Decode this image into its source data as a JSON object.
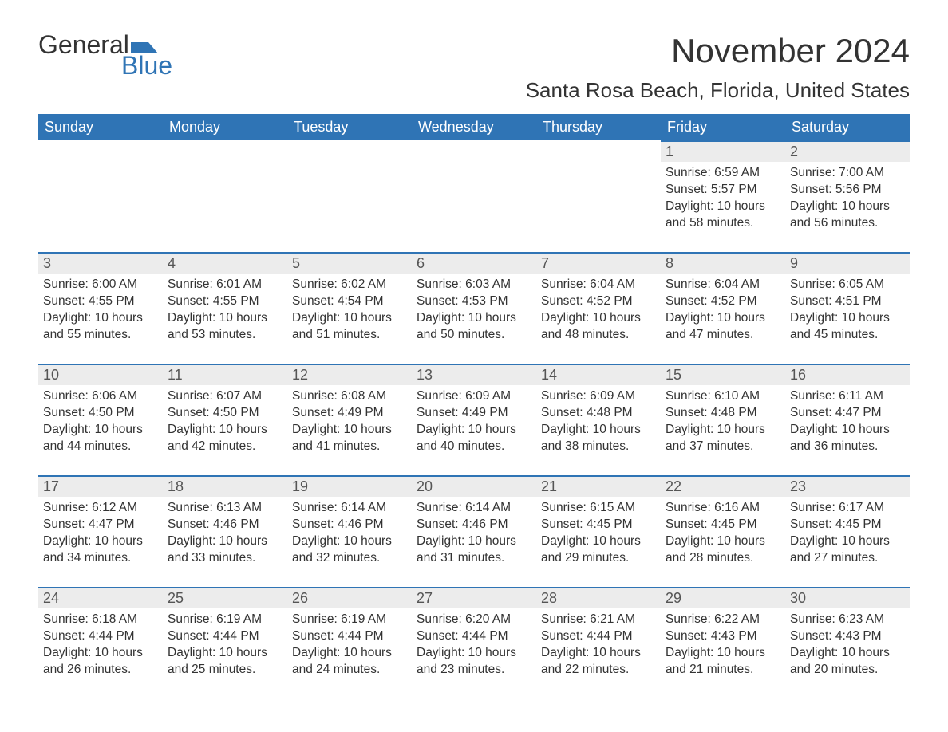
{
  "brand": {
    "name_part1": "General",
    "name_part2": "Blue",
    "text_color": "#333333",
    "accent_color": "#2f74b5"
  },
  "header": {
    "month_title": "November 2024",
    "location": "Santa Rosa Beach, Florida, United States"
  },
  "calendar": {
    "type": "table",
    "header_bg": "#2f74b5",
    "header_fg": "#ffffff",
    "row_accent_color": "#2f74b5",
    "daynum_bg": "#ececec",
    "background_color": "#ffffff",
    "text_color": "#333333",
    "body_fontsize_pt": 12,
    "header_fontsize_pt": 14,
    "columns": [
      "Sunday",
      "Monday",
      "Tuesday",
      "Wednesday",
      "Thursday",
      "Friday",
      "Saturday"
    ],
    "first_weekday_index": 5,
    "days": [
      {
        "n": 1,
        "sunrise": "6:59 AM",
        "sunset": "5:57 PM",
        "daylight": "10 hours and 58 minutes."
      },
      {
        "n": 2,
        "sunrise": "7:00 AM",
        "sunset": "5:56 PM",
        "daylight": "10 hours and 56 minutes."
      },
      {
        "n": 3,
        "sunrise": "6:00 AM",
        "sunset": "4:55 PM",
        "daylight": "10 hours and 55 minutes."
      },
      {
        "n": 4,
        "sunrise": "6:01 AM",
        "sunset": "4:55 PM",
        "daylight": "10 hours and 53 minutes."
      },
      {
        "n": 5,
        "sunrise": "6:02 AM",
        "sunset": "4:54 PM",
        "daylight": "10 hours and 51 minutes."
      },
      {
        "n": 6,
        "sunrise": "6:03 AM",
        "sunset": "4:53 PM",
        "daylight": "10 hours and 50 minutes."
      },
      {
        "n": 7,
        "sunrise": "6:04 AM",
        "sunset": "4:52 PM",
        "daylight": "10 hours and 48 minutes."
      },
      {
        "n": 8,
        "sunrise": "6:04 AM",
        "sunset": "4:52 PM",
        "daylight": "10 hours and 47 minutes."
      },
      {
        "n": 9,
        "sunrise": "6:05 AM",
        "sunset": "4:51 PM",
        "daylight": "10 hours and 45 minutes."
      },
      {
        "n": 10,
        "sunrise": "6:06 AM",
        "sunset": "4:50 PM",
        "daylight": "10 hours and 44 minutes."
      },
      {
        "n": 11,
        "sunrise": "6:07 AM",
        "sunset": "4:50 PM",
        "daylight": "10 hours and 42 minutes."
      },
      {
        "n": 12,
        "sunrise": "6:08 AM",
        "sunset": "4:49 PM",
        "daylight": "10 hours and 41 minutes."
      },
      {
        "n": 13,
        "sunrise": "6:09 AM",
        "sunset": "4:49 PM",
        "daylight": "10 hours and 40 minutes."
      },
      {
        "n": 14,
        "sunrise": "6:09 AM",
        "sunset": "4:48 PM",
        "daylight": "10 hours and 38 minutes."
      },
      {
        "n": 15,
        "sunrise": "6:10 AM",
        "sunset": "4:48 PM",
        "daylight": "10 hours and 37 minutes."
      },
      {
        "n": 16,
        "sunrise": "6:11 AM",
        "sunset": "4:47 PM",
        "daylight": "10 hours and 36 minutes."
      },
      {
        "n": 17,
        "sunrise": "6:12 AM",
        "sunset": "4:47 PM",
        "daylight": "10 hours and 34 minutes."
      },
      {
        "n": 18,
        "sunrise": "6:13 AM",
        "sunset": "4:46 PM",
        "daylight": "10 hours and 33 minutes."
      },
      {
        "n": 19,
        "sunrise": "6:14 AM",
        "sunset": "4:46 PM",
        "daylight": "10 hours and 32 minutes."
      },
      {
        "n": 20,
        "sunrise": "6:14 AM",
        "sunset": "4:46 PM",
        "daylight": "10 hours and 31 minutes."
      },
      {
        "n": 21,
        "sunrise": "6:15 AM",
        "sunset": "4:45 PM",
        "daylight": "10 hours and 29 minutes."
      },
      {
        "n": 22,
        "sunrise": "6:16 AM",
        "sunset": "4:45 PM",
        "daylight": "10 hours and 28 minutes."
      },
      {
        "n": 23,
        "sunrise": "6:17 AM",
        "sunset": "4:45 PM",
        "daylight": "10 hours and 27 minutes."
      },
      {
        "n": 24,
        "sunrise": "6:18 AM",
        "sunset": "4:44 PM",
        "daylight": "10 hours and 26 minutes."
      },
      {
        "n": 25,
        "sunrise": "6:19 AM",
        "sunset": "4:44 PM",
        "daylight": "10 hours and 25 minutes."
      },
      {
        "n": 26,
        "sunrise": "6:19 AM",
        "sunset": "4:44 PM",
        "daylight": "10 hours and 24 minutes."
      },
      {
        "n": 27,
        "sunrise": "6:20 AM",
        "sunset": "4:44 PM",
        "daylight": "10 hours and 23 minutes."
      },
      {
        "n": 28,
        "sunrise": "6:21 AM",
        "sunset": "4:44 PM",
        "daylight": "10 hours and 22 minutes."
      },
      {
        "n": 29,
        "sunrise": "6:22 AM",
        "sunset": "4:43 PM",
        "daylight": "10 hours and 21 minutes."
      },
      {
        "n": 30,
        "sunrise": "6:23 AM",
        "sunset": "4:43 PM",
        "daylight": "10 hours and 20 minutes."
      }
    ],
    "labels": {
      "sunrise": "Sunrise:",
      "sunset": "Sunset:",
      "daylight": "Daylight:"
    }
  }
}
